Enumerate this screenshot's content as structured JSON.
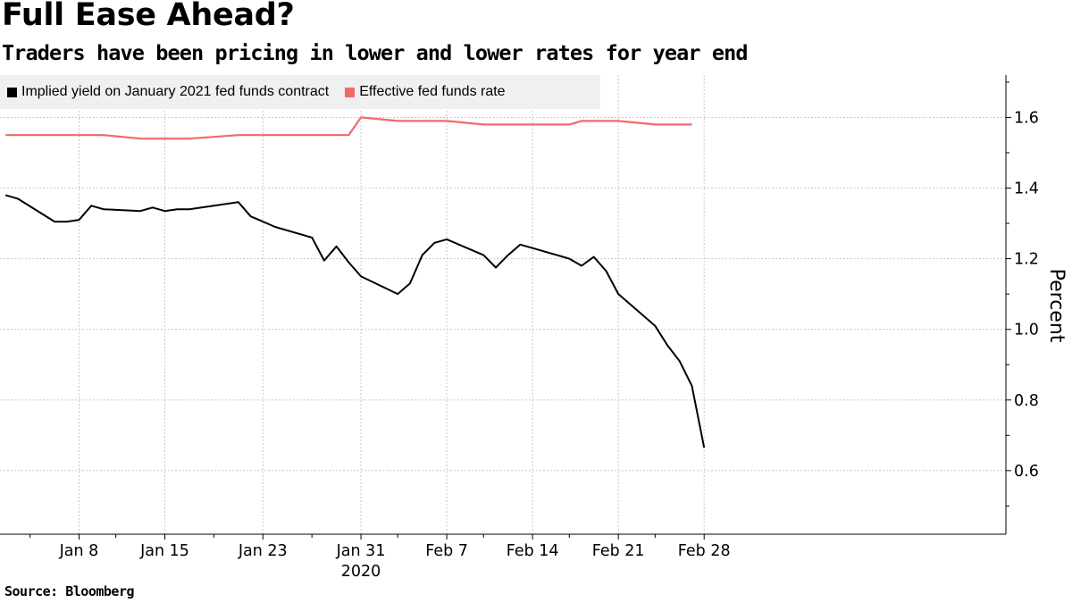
{
  "header": {
    "title": "Full Ease Ahead?",
    "subtitle": "Traders have been pricing in lower and lower rates for year end"
  },
  "footer": {
    "source": "Source: Bloomberg"
  },
  "colors": {
    "implied": "#000000",
    "effective": "#f06a6a",
    "grid": "#c8c8c8",
    "legend_bg": "#f0f0f0"
  },
  "chart_data": {
    "type": "line",
    "title": "Full Ease Ahead?",
    "subtitle": "Traders have been pricing in lower and lower rates for year end",
    "ylabel": "Percent",
    "xlabel": "",
    "year_label": "2020",
    "ylim": [
      0.42,
      1.72
    ],
    "yticks": [
      0.6,
      0.8,
      1.0,
      1.2,
      1.4,
      1.6
    ],
    "ytick_labels": [
      "0.6",
      "0.8",
      "1.0",
      "1.2",
      "1.4",
      "1.6"
    ],
    "xticks": [
      "2020-01-08",
      "2020-01-15",
      "2020-01-23",
      "2020-01-31",
      "2020-02-07",
      "2020-02-14",
      "2020-02-21",
      "2020-02-28"
    ],
    "xtick_labels": [
      "Jan 8",
      "Jan 15",
      "Jan 23",
      "Jan 31",
      "Feb 7",
      "Feb 14",
      "Feb 21",
      "Feb 28"
    ],
    "grid": true,
    "legend_position": "top-left",
    "series": [
      {
        "name": "Implied yield on January 2021 fed funds contract",
        "color": "#000000",
        "points": [
          [
            "2020-01-02",
            1.38
          ],
          [
            "2020-01-03",
            1.37
          ],
          [
            "2020-01-06",
            1.305
          ],
          [
            "2020-01-07",
            1.305
          ],
          [
            "2020-01-08",
            1.31
          ],
          [
            "2020-01-09",
            1.35
          ],
          [
            "2020-01-10",
            1.34
          ],
          [
            "2020-01-13",
            1.335
          ],
          [
            "2020-01-14",
            1.345
          ],
          [
            "2020-01-15",
            1.335
          ],
          [
            "2020-01-16",
            1.34
          ],
          [
            "2020-01-17",
            1.34
          ],
          [
            "2020-01-21",
            1.36
          ],
          [
            "2020-01-22",
            1.32
          ],
          [
            "2020-01-23",
            1.305
          ],
          [
            "2020-01-24",
            1.29
          ],
          [
            "2020-01-27",
            1.26
          ],
          [
            "2020-01-28",
            1.195
          ],
          [
            "2020-01-29",
            1.235
          ],
          [
            "2020-01-30",
            1.19
          ],
          [
            "2020-01-31",
            1.15
          ],
          [
            "2020-02-03",
            1.1
          ],
          [
            "2020-02-04",
            1.13
          ],
          [
            "2020-02-05",
            1.21
          ],
          [
            "2020-02-06",
            1.245
          ],
          [
            "2020-02-07",
            1.255
          ],
          [
            "2020-02-10",
            1.21
          ],
          [
            "2020-02-11",
            1.175
          ],
          [
            "2020-02-12",
            1.21
          ],
          [
            "2020-02-13",
            1.24
          ],
          [
            "2020-02-14",
            1.23
          ],
          [
            "2020-02-17",
            1.2
          ],
          [
            "2020-02-18",
            1.18
          ],
          [
            "2020-02-19",
            1.205
          ],
          [
            "2020-02-20",
            1.165
          ],
          [
            "2020-02-21",
            1.1
          ],
          [
            "2020-02-24",
            1.01
          ],
          [
            "2020-02-25",
            0.955
          ],
          [
            "2020-02-26",
            0.91
          ],
          [
            "2020-02-27",
            0.84
          ],
          [
            "2020-02-28",
            0.665
          ]
        ]
      },
      {
        "name": "Effective fed funds rate",
        "color": "#f06a6a",
        "points": [
          [
            "2020-01-02",
            1.55
          ],
          [
            "2020-01-03",
            1.55
          ],
          [
            "2020-01-06",
            1.55
          ],
          [
            "2020-01-07",
            1.55
          ],
          [
            "2020-01-08",
            1.55
          ],
          [
            "2020-01-09",
            1.55
          ],
          [
            "2020-01-10",
            1.55
          ],
          [
            "2020-01-13",
            1.54
          ],
          [
            "2020-01-14",
            1.54
          ],
          [
            "2020-01-15",
            1.54
          ],
          [
            "2020-01-16",
            1.54
          ],
          [
            "2020-01-17",
            1.54
          ],
          [
            "2020-01-21",
            1.55
          ],
          [
            "2020-01-22",
            1.55
          ],
          [
            "2020-01-23",
            1.55
          ],
          [
            "2020-01-24",
            1.55
          ],
          [
            "2020-01-27",
            1.55
          ],
          [
            "2020-01-28",
            1.55
          ],
          [
            "2020-01-29",
            1.55
          ],
          [
            "2020-01-30",
            1.55
          ],
          [
            "2020-01-31",
            1.6
          ],
          [
            "2020-02-03",
            1.59
          ],
          [
            "2020-02-04",
            1.59
          ],
          [
            "2020-02-05",
            1.59
          ],
          [
            "2020-02-06",
            1.59
          ],
          [
            "2020-02-07",
            1.59
          ],
          [
            "2020-02-10",
            1.58
          ],
          [
            "2020-02-11",
            1.58
          ],
          [
            "2020-02-12",
            1.58
          ],
          [
            "2020-02-13",
            1.58
          ],
          [
            "2020-02-14",
            1.58
          ],
          [
            "2020-02-17",
            1.58
          ],
          [
            "2020-02-18",
            1.59
          ],
          [
            "2020-02-19",
            1.59
          ],
          [
            "2020-02-20",
            1.59
          ],
          [
            "2020-02-21",
            1.59
          ],
          [
            "2020-02-24",
            1.58
          ],
          [
            "2020-02-25",
            1.58
          ],
          [
            "2020-02-26",
            1.58
          ],
          [
            "2020-02-27",
            1.58
          ]
        ]
      }
    ]
  }
}
